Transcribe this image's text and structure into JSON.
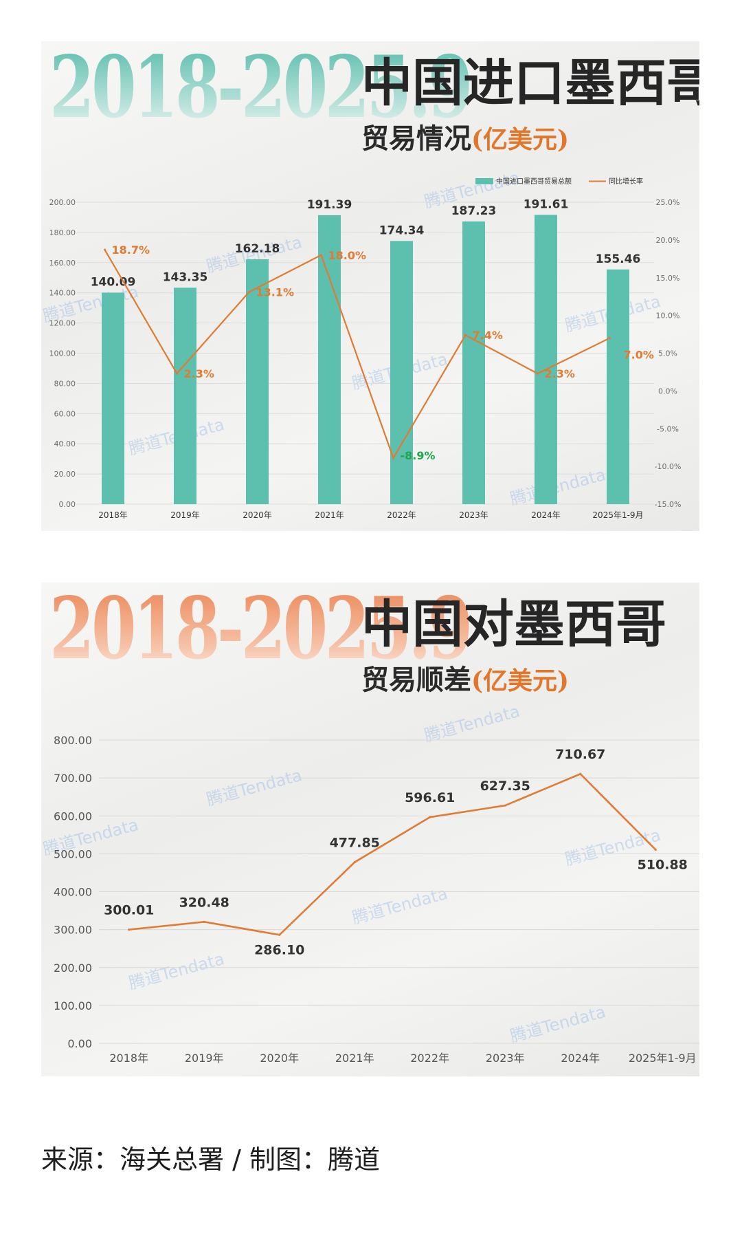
{
  "colors": {
    "bar": "#5dbfae",
    "growth_line": "#e07b33",
    "negative_label": "#1ea84a",
    "surplus_line": "#e07b33",
    "big_year_teal": "#5fbfae",
    "big_year_orange": "#ec8a5c"
  },
  "panel1": {
    "big_year": "2018-2025.9",
    "title_main": "中国进口墨西哥",
    "title_sub": "贸易情况",
    "title_unit": "(亿美元)",
    "watermark": "腾道Tendata"
  },
  "panel2": {
    "big_year": "2018-2025.9",
    "title_main": "中国对墨西哥",
    "title_sub": "贸易顺差",
    "title_unit": "(亿美元)",
    "watermark": "腾道Tendata"
  },
  "source": "来源：海关总署 / 制图：腾道",
  "chart_data": [
    {
      "type": "bar",
      "categories": [
        "2018年",
        "2019年",
        "2020年",
        "2021年",
        "2022年",
        "2023年",
        "2024年",
        "2025年1-9月"
      ],
      "series": [
        {
          "name": "中国进口墨西哥贸易总额",
          "type": "bar",
          "axis": "left",
          "values": [
            140.09,
            143.35,
            162.18,
            191.39,
            174.34,
            187.23,
            191.61,
            155.46
          ],
          "labels": [
            "140.09",
            "143.35",
            "162.18",
            "191.39",
            "174.34",
            "187.23",
            "191.61",
            "155.46"
          ]
        },
        {
          "name": "同比增长率",
          "type": "line",
          "axis": "right",
          "values": [
            18.7,
            2.3,
            13.1,
            18.0,
            -8.9,
            7.4,
            2.3,
            7.0
          ],
          "labels": [
            "18.7%",
            "2.3%",
            "13.1%",
            "18.0%",
            "-8.9%",
            "7.4%",
            "2.3%",
            "7.0%"
          ]
        }
      ],
      "ylim": [
        0,
        200
      ],
      "y2lim": [
        -15,
        25
      ],
      "yticks": [
        "0.00",
        "20.00",
        "40.00",
        "60.00",
        "80.00",
        "100.00",
        "120.00",
        "140.00",
        "160.00",
        "180.00",
        "200.00"
      ],
      "y2ticks": [
        "-15.0%",
        "-10.0%",
        "-5.0%",
        "0.0%",
        "5.0%",
        "10.0%",
        "15.0%",
        "20.0%",
        "25.0%"
      ],
      "legend": "top-right",
      "grid": true
    },
    {
      "type": "line",
      "categories": [
        "2018年",
        "2019年",
        "2020年",
        "2021年",
        "2022年",
        "2023年",
        "2024年",
        "2025年1-9月"
      ],
      "series": [
        {
          "values": [
            300.01,
            320.48,
            286.1,
            477.85,
            596.61,
            627.35,
            710.67,
            510.88
          ],
          "labels": [
            "300.01",
            "320.48",
            "286.10",
            "477.85",
            "596.61",
            "627.35",
            "710.67",
            "510.88"
          ]
        }
      ],
      "ylim": [
        0,
        800
      ],
      "yticks": [
        "0.00",
        "100.00",
        "200.00",
        "300.00",
        "400.00",
        "500.00",
        "600.00",
        "700.00",
        "800.00"
      ],
      "grid": true
    }
  ]
}
